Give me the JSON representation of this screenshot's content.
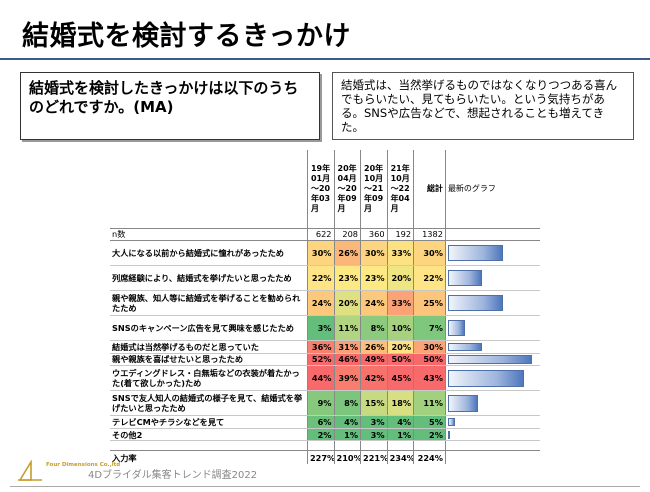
{
  "title": "結婚式を検討するきっかけ",
  "question": "結婚式を検討したきっかけは以下のうちのどれですか。(MA)",
  "note": "結婚式は、当然挙げるものではなくなりつつある喜んでもらいたい、見てもらいたい。という気持ちがある。SNSや広告などで、想起されることも増えてきた。",
  "table": {
    "headers": [
      "19年01月～20年03月",
      "20年04月～20年09月",
      "20年10月～21年09月",
      "21年10月～22年04月",
      "総計",
      "最新のグラフ"
    ],
    "n_label": "n数",
    "n_values": [
      "622",
      "208",
      "360",
      "192",
      "1382"
    ],
    "rows": [
      {
        "label": "大人になる以前から結婚式に憧れがあったため",
        "values": [
          "30%",
          "26%",
          "30%",
          "33%",
          "30%"
        ],
        "latest_pct": 33,
        "latest_label": "33%",
        "colors": [
          "#fdd47f",
          "#fbb77a",
          "#fdd47f",
          "#fde284",
          "#fdd47f"
        ],
        "tall": true
      },
      {
        "label": "列席経験により、結婚式を挙げたいと思ったため",
        "values": [
          "22%",
          "23%",
          "23%",
          "20%",
          "22%"
        ],
        "latest_pct": 20,
        "latest_label": "20%",
        "colors": [
          "#fee484",
          "#fde983",
          "#fde983",
          "#f0e583",
          "#fee484"
        ],
        "tall": true
      },
      {
        "label": "親や親族、知人等に結婚式を挙げることを勧められたため",
        "values": [
          "24%",
          "20%",
          "24%",
          "33%",
          "25%"
        ],
        "latest_pct": 33,
        "latest_label": "33%",
        "colors": [
          "#fcc97c",
          "#dfe082",
          "#fcc97c",
          "#fba277",
          "#fcc57c"
        ],
        "tall": true
      },
      {
        "label": "SNSのキャンペーン広告を見て興味を感じたため",
        "values": [
          "3%",
          "11%",
          "8%",
          "10%",
          "7%"
        ],
        "latest_pct": 10,
        "latest_label": "10%",
        "colors": [
          "#63be7b",
          "#b1d580",
          "#8ccb7e",
          "#a6d27f",
          "#7fc77d"
        ],
        "tall": true
      },
      {
        "label": "結婚式は当然挙げるものだと思っていた",
        "values": [
          "36%",
          "31%",
          "26%",
          "20%",
          "30%"
        ],
        "latest_pct": 20,
        "latest_label": "20%",
        "colors": [
          "#f8806d",
          "#fa9f76",
          "#fcbe7b",
          "#fde383",
          "#fba576"
        ],
        "tall": false
      },
      {
        "label": "親や親族を喜ばせたいと思ったため",
        "values": [
          "52%",
          "46%",
          "49%",
          "50%",
          "50%"
        ],
        "latest_pct": 50,
        "latest_label": "50%",
        "colors": [
          "#f8696b",
          "#f8696b",
          "#f8696b",
          "#f8696b",
          "#f8696b"
        ],
        "tall": false
      },
      {
        "label": "ウエディングドレス・白無垢などの衣装が着たかった(着て欲しかった)ため",
        "values": [
          "44%",
          "39%",
          "42%",
          "45%",
          "43%"
        ],
        "latest_pct": 45,
        "latest_label": "45%",
        "colors": [
          "#f8696b",
          "#f97d6e",
          "#f8726c",
          "#f8696b",
          "#f8696b"
        ],
        "tall": true
      },
      {
        "label": "SNSで友人知人の結婚式の様子を見て、結婚式を挙げたいと思ったため",
        "values": [
          "9%",
          "8%",
          "15%",
          "18%",
          "11%"
        ],
        "latest_pct": 18,
        "latest_label": "18%",
        "colors": [
          "#86c97d",
          "#7cc57c",
          "#c6db81",
          "#d8df82",
          "#a1d17f"
        ],
        "tall": true
      },
      {
        "label": "テレビCMやチラシなどを見て",
        "values": [
          "6%",
          "4%",
          "3%",
          "4%",
          "5%"
        ],
        "latest_pct": 4,
        "latest_label": "4%",
        "colors": [
          "#6cc07b",
          "#63be7b",
          "#63be7b",
          "#63be7b",
          "#63be7b"
        ],
        "tall": false
      },
      {
        "label": "その他2",
        "values": [
          "2%",
          "1%",
          "3%",
          "1%",
          "2%"
        ],
        "latest_pct": 1,
        "latest_label": "1%",
        "colors": [
          "#63be7b",
          "#63be7b",
          "#63be7b",
          "#63be7b",
          "#63be7b"
        ],
        "tall": false
      }
    ],
    "rate_label": "入力率",
    "rate_values": [
      "227%",
      "210%",
      "221%",
      "234%",
      "224%"
    ]
  },
  "footer": {
    "logo_text": "Four Dimensions Co.,ltd",
    "caption": "4Dブライダル集客トレンド調査2022"
  }
}
